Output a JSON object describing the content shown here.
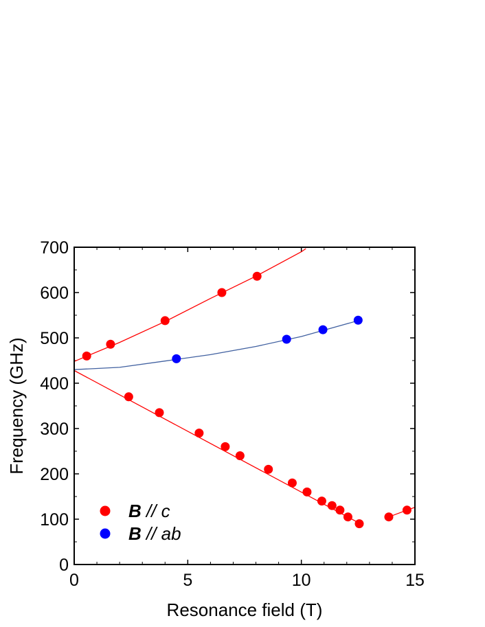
{
  "chart_data": {
    "type": "scatter",
    "xlabel": "Resonance field (T)",
    "ylabel": "Frequency (GHz)",
    "xlim": [
      0,
      15
    ],
    "ylim": [
      0,
      700
    ],
    "xticks": [
      "0",
      "5",
      "10",
      "15"
    ],
    "yticks": [
      "0",
      "100",
      "200",
      "300",
      "400",
      "500",
      "600",
      "700"
    ],
    "legend_position": "bottom-left",
    "series": [
      {
        "name": "B // c",
        "legend_bold": "B",
        "legend_rest": " // c",
        "color": "#ff0000",
        "points": [
          [
            0.55,
            460
          ],
          [
            1.6,
            486
          ],
          [
            4.0,
            538
          ],
          [
            6.5,
            600
          ],
          [
            8.05,
            636
          ],
          [
            2.4,
            370
          ],
          [
            3.75,
            335
          ],
          [
            5.5,
            290
          ],
          [
            6.65,
            260
          ],
          [
            7.3,
            240
          ],
          [
            8.55,
            210
          ],
          [
            9.6,
            180
          ],
          [
            10.25,
            160
          ],
          [
            10.9,
            140
          ],
          [
            11.35,
            130
          ],
          [
            11.7,
            120
          ],
          [
            12.05,
            105
          ],
          [
            12.55,
            90
          ],
          [
            13.85,
            105
          ],
          [
            14.65,
            120
          ]
        ],
        "fits": [
          [
            [
              0,
              448
            ],
            [
              2,
              490
            ],
            [
              4,
              536
            ],
            [
              6,
              587
            ],
            [
              8,
              636
            ],
            [
              10,
              690
            ],
            [
              10.2,
              697
            ]
          ],
          [
            [
              0,
              428
            ],
            [
              12.6,
              90
            ]
          ],
          [
            [
              13.85,
              105
            ],
            [
              14.65,
              120
            ],
            [
              15,
              126
            ]
          ]
        ]
      },
      {
        "name": "B // ab",
        "legend_bold": "B",
        "legend_rest": " // ab",
        "color": "#0000ff",
        "fit_color": "#4060a0",
        "points": [
          [
            4.5,
            454
          ],
          [
            9.35,
            497
          ],
          [
            10.95,
            518
          ],
          [
            12.5,
            539
          ]
        ],
        "fits": [
          [
            [
              0,
              430
            ],
            [
              2,
              435
            ],
            [
              4,
              449
            ],
            [
              6,
              463
            ],
            [
              8,
              481
            ],
            [
              10,
              503
            ],
            [
              12.5,
              538
            ]
          ]
        ]
      }
    ]
  }
}
